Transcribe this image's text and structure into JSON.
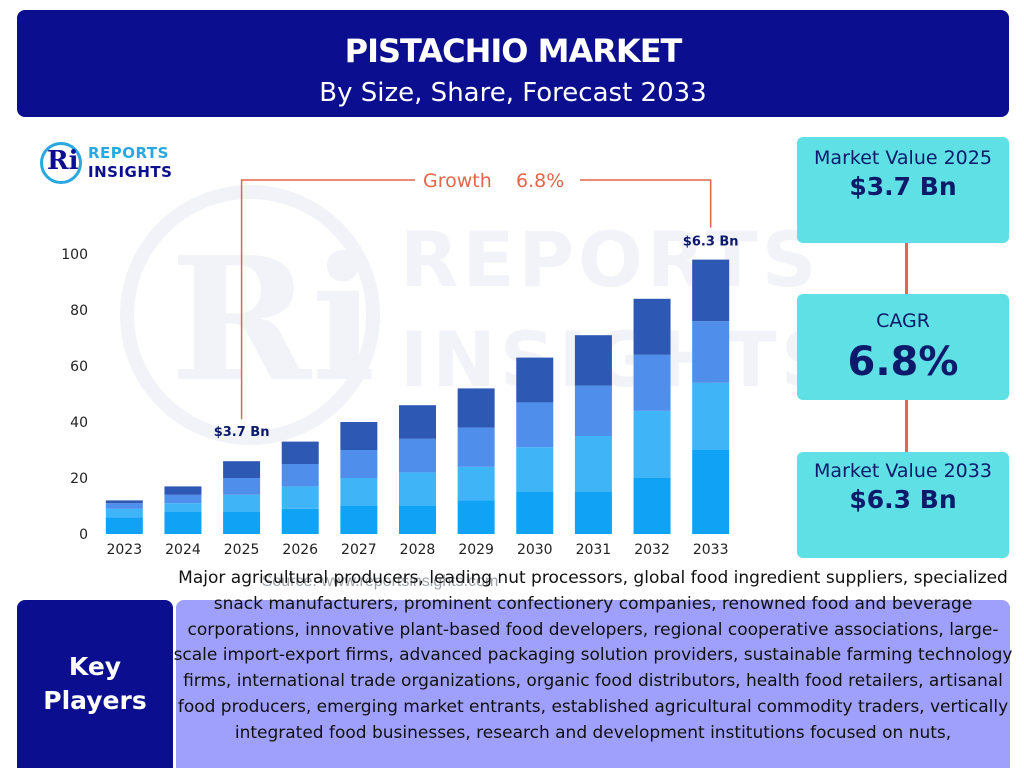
{
  "header": {
    "title": "PISTACHIO MARKET",
    "subtitle": "By Size, Share, Forecast 2033"
  },
  "logo": {
    "mark": "Ri",
    "line1": "REPORTS",
    "line2": "INSIGHTS"
  },
  "watermark": {
    "mark": "Ri",
    "line1": "REPORTS",
    "line2": "INSIGHTS"
  },
  "chart_data": {
    "type": "bar",
    "stacked": true,
    "categories": [
      "2023",
      "2024",
      "2025",
      "2026",
      "2027",
      "2028",
      "2029",
      "2030",
      "2031",
      "2032",
      "2033"
    ],
    "series": [
      {
        "values": [
          6,
          8,
          8,
          9,
          10,
          10,
          12,
          15,
          15,
          20,
          30
        ]
      },
      {
        "values": [
          3,
          3,
          6,
          8,
          10,
          12,
          12,
          16,
          20,
          24,
          24
        ]
      },
      {
        "values": [
          2,
          3,
          6,
          8,
          10,
          12,
          14,
          16,
          18,
          20,
          22
        ]
      },
      {
        "values": [
          1,
          3,
          6,
          8,
          10,
          12,
          14,
          16,
          18,
          20,
          22
        ]
      }
    ],
    "totals": [
      12,
      17,
      26,
      33,
      40,
      46,
      52,
      63,
      71,
      84,
      98
    ],
    "ylim": [
      0,
      100
    ],
    "yticks": [
      0,
      20,
      40,
      60,
      80,
      100
    ],
    "colors": [
      "#10a2f5",
      "#3fb4f7",
      "#4f8eea",
      "#2d58b4"
    ],
    "grid": false,
    "annotations": {
      "growth_label": "Growth",
      "growth_value": "6.8%",
      "start_label": "$3.7 Bn",
      "start_category": "2025",
      "end_label": "$6.3 Bn",
      "end_category": "2033",
      "growth_color": "#e2664a"
    }
  },
  "source_text": "Source: www.reportsinsights.com",
  "stats": {
    "market_value_2025": {
      "label": "Market Value 2025",
      "value": "$3.7 Bn"
    },
    "cagr": {
      "label": "CAGR",
      "value": "6.8%"
    },
    "market_value_2033": {
      "label": "Market Value 2033",
      "value": "$6.3 Bn"
    }
  },
  "key_players": {
    "label_line1": "Key",
    "label_line2": "Players",
    "text": "Major agricultural producers, leading nut processors, global food ingredient suppliers, specialized snack manufacturers, prominent confectionery companies, renowned food and beverage corporations, innovative plant-based food developers, regional cooperative associations, large-scale import-export firms, advanced packaging solution providers, sustainable farming technology firms, international trade organizations, organic food distributors, health food retailers, artisanal food producers, emerging market entrants, established agricultural commodity traders, vertically integrated food businesses, research and development institutions focused on nuts,"
  },
  "colors": {
    "header_bg": "#0b0f8f",
    "stat_box_bg": "#5fe0e4",
    "players_text_bg": "#9fa0fb",
    "accent_line": "#e2664a"
  }
}
